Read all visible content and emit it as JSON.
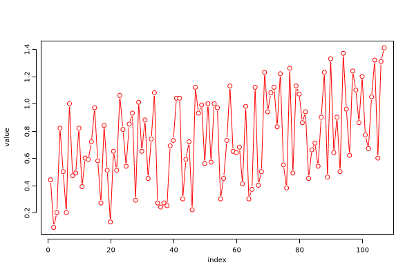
{
  "chart_data": {
    "type": "line",
    "title": "",
    "xlabel": "index",
    "ylabel": "value",
    "xlim": [
      -2,
      110
    ],
    "ylim": [
      0.04,
      1.46
    ],
    "xticks": [
      0,
      20,
      40,
      60,
      80,
      100
    ],
    "yticks": [
      0.2,
      0.4,
      0.6,
      0.8,
      1.0,
      1.2,
      1.4
    ],
    "ytick_labels": [
      "0.2",
      "0.4",
      "0.6",
      "0.8",
      "1.0",
      "1.2",
      "1.4"
    ],
    "grid": false,
    "style": {
      "color": "#ff0000",
      "marker": "open-circle",
      "line": "broken-between-points"
    },
    "series": [
      {
        "x": [
          1,
          2,
          3,
          4,
          5,
          6,
          7,
          8,
          9,
          10,
          11,
          12,
          13,
          14,
          15,
          16,
          17,
          18,
          19,
          20,
          21,
          22,
          23,
          24,
          25,
          26,
          27,
          28,
          29,
          30,
          31,
          32,
          33,
          34,
          35,
          36,
          37,
          38,
          39,
          40,
          41,
          42,
          43,
          44,
          45,
          46,
          47,
          48,
          49,
          50,
          51,
          52,
          53,
          54,
          55,
          56,
          57,
          58,
          59,
          60,
          61,
          62,
          63,
          64,
          65,
          66,
          67,
          68,
          69,
          70,
          71,
          72,
          73,
          74,
          75,
          76,
          77,
          78,
          79,
          80,
          81,
          82,
          83,
          84,
          85,
          86,
          87,
          88,
          89,
          90,
          91,
          92,
          93,
          94,
          95,
          96,
          97,
          98,
          99,
          100,
          101,
          102,
          103,
          104,
          105,
          106,
          107
        ],
        "values": [
          0.44,
          0.09,
          0.2,
          0.82,
          0.5,
          0.2,
          1.0,
          0.47,
          0.49,
          0.82,
          0.39,
          0.6,
          0.59,
          0.72,
          0.97,
          0.58,
          0.27,
          0.84,
          0.51,
          0.13,
          0.65,
          0.51,
          1.06,
          0.81,
          0.54,
          0.85,
          0.93,
          0.29,
          1.01,
          0.65,
          0.88,
          0.45,
          0.74,
          1.08,
          0.27,
          0.24,
          0.27,
          0.25,
          0.69,
          0.73,
          1.04,
          1.04,
          0.3,
          0.59,
          0.72,
          0.22,
          1.12,
          0.93,
          0.99,
          0.56,
          1.0,
          0.57,
          1.0,
          0.97,
          0.3,
          0.45,
          0.73,
          1.13,
          0.65,
          0.64,
          0.68,
          0.41,
          0.98,
          0.3,
          0.37,
          1.12,
          0.4,
          0.5,
          1.23,
          0.94,
          1.08,
          1.12,
          0.83,
          1.22,
          0.55,
          0.38,
          1.26,
          0.49,
          1.13,
          1.07,
          0.86,
          0.94,
          0.45,
          0.66,
          0.71,
          0.54,
          0.9,
          1.23,
          0.46,
          1.33,
          0.64,
          0.9,
          0.5,
          1.37,
          0.96,
          0.62,
          1.24,
          1.1,
          0.86,
          1.2,
          0.77,
          0.67,
          1.05,
          1.32,
          0.6,
          1.31,
          1.41
        ]
      }
    ]
  }
}
